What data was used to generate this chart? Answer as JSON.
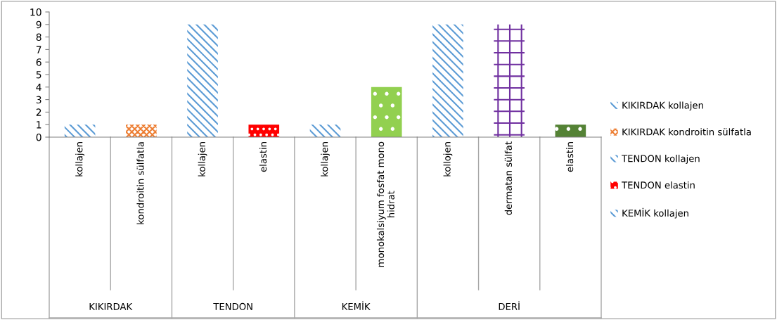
{
  "chart_data": {
    "type": "bar",
    "categories": [
      "kollajen",
      "kondroitin sülfatla",
      "kollajen",
      "elastin",
      "kollajen",
      "monokalsiyum fosfat mono\nhidrat",
      "kollojen",
      "dermatan sülfat",
      "elastin"
    ],
    "series": [
      {
        "name": "KIKIRDAK kollajen",
        "color": "#5b9bd5",
        "values": [
          1,
          null,
          null,
          null,
          null,
          null,
          null,
          null,
          null
        ]
      },
      {
        "name": "KIKIRDAK kondroitin sülfatla",
        "color": "#ed7d31",
        "values": [
          null,
          1,
          null,
          null,
          null,
          null,
          null,
          null,
          null
        ]
      },
      {
        "name": "TENDON kollajen",
        "color": "#5b9bd5",
        "values": [
          null,
          null,
          9,
          null,
          null,
          null,
          null,
          null,
          null
        ]
      },
      {
        "name": "TENDON elastin",
        "color": "#ff0000",
        "values": [
          null,
          null,
          null,
          1,
          null,
          null,
          null,
          null,
          null
        ]
      },
      {
        "name": "KEMİK kollajen",
        "color": "#5b9bd5",
        "values": [
          null,
          null,
          null,
          null,
          1,
          null,
          null,
          null,
          null
        ]
      },
      {
        "color": "#92d050",
        "values": [
          null,
          null,
          null,
          null,
          null,
          4,
          null,
          null,
          null
        ]
      },
      {
        "color": "#5b9bd5",
        "values": [
          null,
          null,
          null,
          null,
          null,
          null,
          9,
          null,
          null
        ]
      },
      {
        "color": "#7030a0",
        "values": [
          null,
          null,
          null,
          null,
          null,
          null,
          null,
          9,
          null
        ]
      },
      {
        "color": "#548235",
        "values": [
          null,
          null,
          null,
          null,
          null,
          null,
          null,
          null,
          1
        ]
      }
    ],
    "annotations": [
      "KIKIRDAK",
      "TENDON",
      "KEMİK",
      "DERİ"
    ],
    "ylim": [
      0,
      10
    ],
    "yticks": [
      0,
      1,
      2,
      3,
      4,
      5,
      6,
      7,
      8,
      9,
      10
    ],
    "grid": false,
    "legend": "right"
  }
}
